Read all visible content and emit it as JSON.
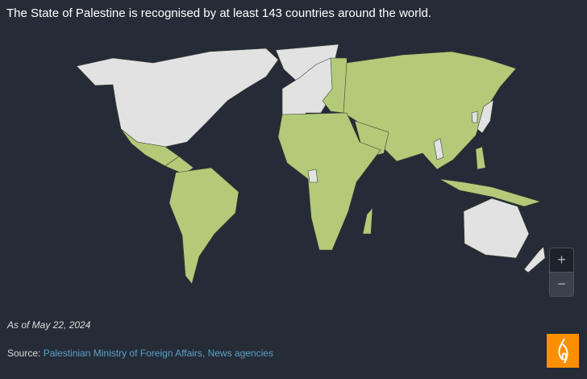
{
  "title": "The State of Palestine is recognised by at least 143 countries around the world.",
  "map": {
    "colors": {
      "background": "#252c37",
      "recognises": "#b3cb79",
      "does_not_recognise": "#e2e2e2",
      "border": "#3a3f33"
    },
    "legend_categories": [
      "recognises",
      "does_not_recognise"
    ]
  },
  "zoom_controls": {
    "zoom_in": "+",
    "zoom_out": "−"
  },
  "as_of": "As of May 22, 2024",
  "source": {
    "label": "Source:",
    "text": "Palestinian Ministry of Foreign Affairs, News agencies"
  },
  "logo": {
    "name": "Al Jazeera",
    "icon": "al-jazeera-logo",
    "color": "#fa9000"
  }
}
